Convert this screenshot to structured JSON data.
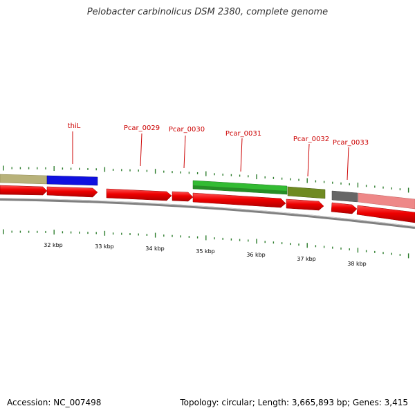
{
  "title": "Pelobacter carbinolicus DSM 2380, complete genome",
  "footer": {
    "accession": "Accession: NC_007498",
    "summary": "Topology: circular; Length: 3,665,893 bp; Genes: 3,415"
  },
  "colors": {
    "cds": "#ee0000",
    "gene_label": "#cc0000",
    "tick": "#2d7d2d",
    "backbone": "#808080"
  },
  "gene_labels": [
    {
      "id": "thil",
      "text": "thiL"
    },
    {
      "id": "pcar-0029",
      "text": "Pcar_0029"
    },
    {
      "id": "pcar-0030",
      "text": "Pcar_0030"
    },
    {
      "id": "pcar-0031",
      "text": "Pcar_0031"
    },
    {
      "id": "pcar-0032",
      "text": "Pcar_0032"
    },
    {
      "id": "pcar-0033",
      "text": "Pcar_0033"
    }
  ],
  "scale_labels": [
    "32 kbp",
    "33 kbp",
    "34 kbp",
    "35 kbp",
    "36 kbp",
    "37 kbp",
    "38 kbp"
  ],
  "feature_colors": {
    "tan": "#b8b27a",
    "blue": "#1010e0",
    "green": "#33bb33",
    "olive": "#6f8a22",
    "gray": "#666666",
    "pink": "#ee8888"
  }
}
